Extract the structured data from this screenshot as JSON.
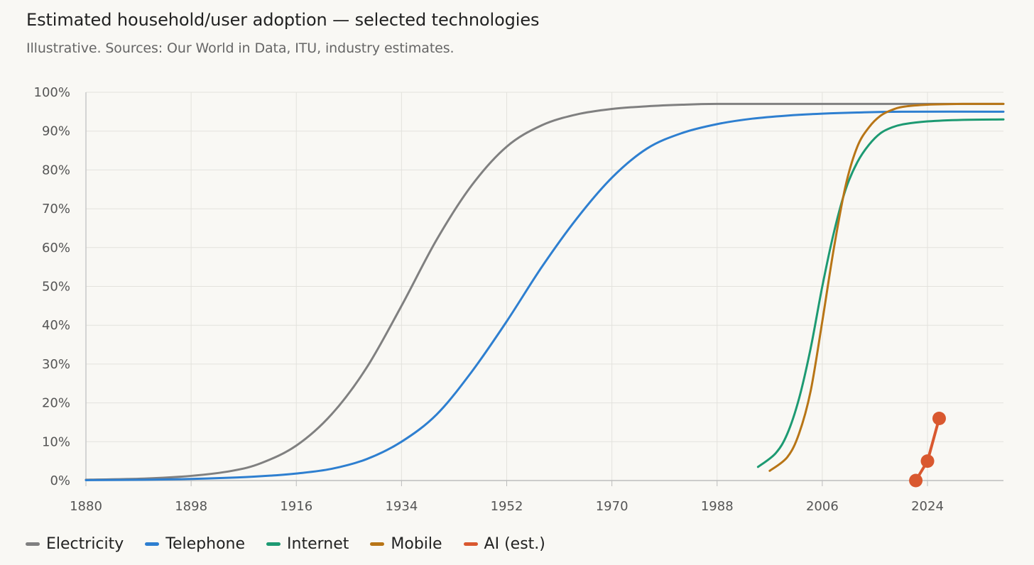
{
  "header": {
    "title": "Estimated household/user adoption — selected technologies",
    "subtitle": "Illustrative. Sources: Our World in Data, ITU, industry estimates."
  },
  "chart_data": {
    "type": "line",
    "title": "Estimated household/user adoption — selected technologies",
    "subtitle": "Illustrative. Sources: Our World in Data, ITU, industry estimates.",
    "xlabel": "",
    "ylabel": "",
    "xlim": [
      1880,
      2037
    ],
    "ylim": [
      0,
      100
    ],
    "x_ticks": [
      1880,
      1898,
      1916,
      1934,
      1952,
      1970,
      1988,
      2006,
      2024
    ],
    "x_tick_labels": [
      "1880",
      "1898",
      "1916",
      "1934",
      "1952",
      "1970",
      "1988",
      "2006",
      "2024"
    ],
    "y_ticks": [
      0,
      10,
      20,
      30,
      40,
      50,
      60,
      70,
      80,
      90,
      100
    ],
    "y_tick_labels": [
      "0%",
      "10%",
      "20%",
      "30%",
      "40%",
      "50%",
      "60%",
      "70%",
      "80%",
      "90%",
      "100%"
    ],
    "grid": true,
    "legend_position": "bottom-left",
    "series": [
      {
        "name": "Electricity",
        "color": "#808080",
        "x": [
          1880,
          1890,
          1898,
          1905,
          1910,
          1916,
          1922,
          1928,
          1934,
          1940,
          1946,
          1952,
          1958,
          1964,
          1970,
          1976,
          1982,
          1988,
          2000,
          2037
        ],
        "y": [
          0.2,
          0.5,
          1.2,
          2.5,
          4.5,
          9,
          17,
          29,
          45,
          62,
          76,
          86,
          91.5,
          94.3,
          95.7,
          96.4,
          96.8,
          97,
          97,
          97
        ]
      },
      {
        "name": "Telephone",
        "color": "#2e7fd0",
        "x": [
          1880,
          1890,
          1898,
          1906,
          1912,
          1916,
          1922,
          1928,
          1934,
          1940,
          1946,
          1952,
          1958,
          1964,
          1970,
          1976,
          1982,
          1988,
          1994,
          2000,
          2006,
          2012,
          2020,
          2037
        ],
        "y": [
          0.1,
          0.2,
          0.4,
          0.8,
          1.3,
          1.8,
          3,
          5.5,
          10,
          17,
          28,
          41,
          55,
          67.5,
          78,
          85.5,
          89.5,
          91.8,
          93.2,
          94,
          94.5,
          94.8,
          95,
          95
        ]
      },
      {
        "name": "Internet",
        "color": "#1d9a72",
        "x": [
          1995,
          1998,
          2000,
          2002,
          2004,
          2006,
          2008,
          2010,
          2012,
          2014,
          2016,
          2018,
          2020,
          2024,
          2030,
          2037
        ],
        "y": [
          3.5,
          7,
          12,
          21,
          34,
          50,
          64,
          75,
          82,
          86.5,
          89.5,
          91,
          91.8,
          92.5,
          92.9,
          93
        ]
      },
      {
        "name": "Mobile",
        "color": "#b87516",
        "x": [
          1997,
          2000,
          2002,
          2004,
          2006,
          2008,
          2010,
          2012,
          2014,
          2016,
          2018,
          2020,
          2024,
          2030,
          2037
        ],
        "y": [
          2.5,
          6,
          12,
          23,
          41,
          60,
          76,
          86,
          91,
          94,
          95.5,
          96.3,
          96.8,
          97,
          97
        ]
      },
      {
        "name": "AI (est.)",
        "color": "#d9582f",
        "x": [
          2022,
          2024,
          2026
        ],
        "y": [
          0,
          5,
          16
        ]
      }
    ]
  },
  "legend": {
    "items": [
      {
        "label": "Electricity",
        "color": "#808080"
      },
      {
        "label": "Telephone",
        "color": "#2e7fd0"
      },
      {
        "label": "Internet",
        "color": "#1d9a72"
      },
      {
        "label": "Mobile",
        "color": "#b87516"
      },
      {
        "label": "AI (est.)",
        "color": "#d9582f"
      }
    ]
  }
}
